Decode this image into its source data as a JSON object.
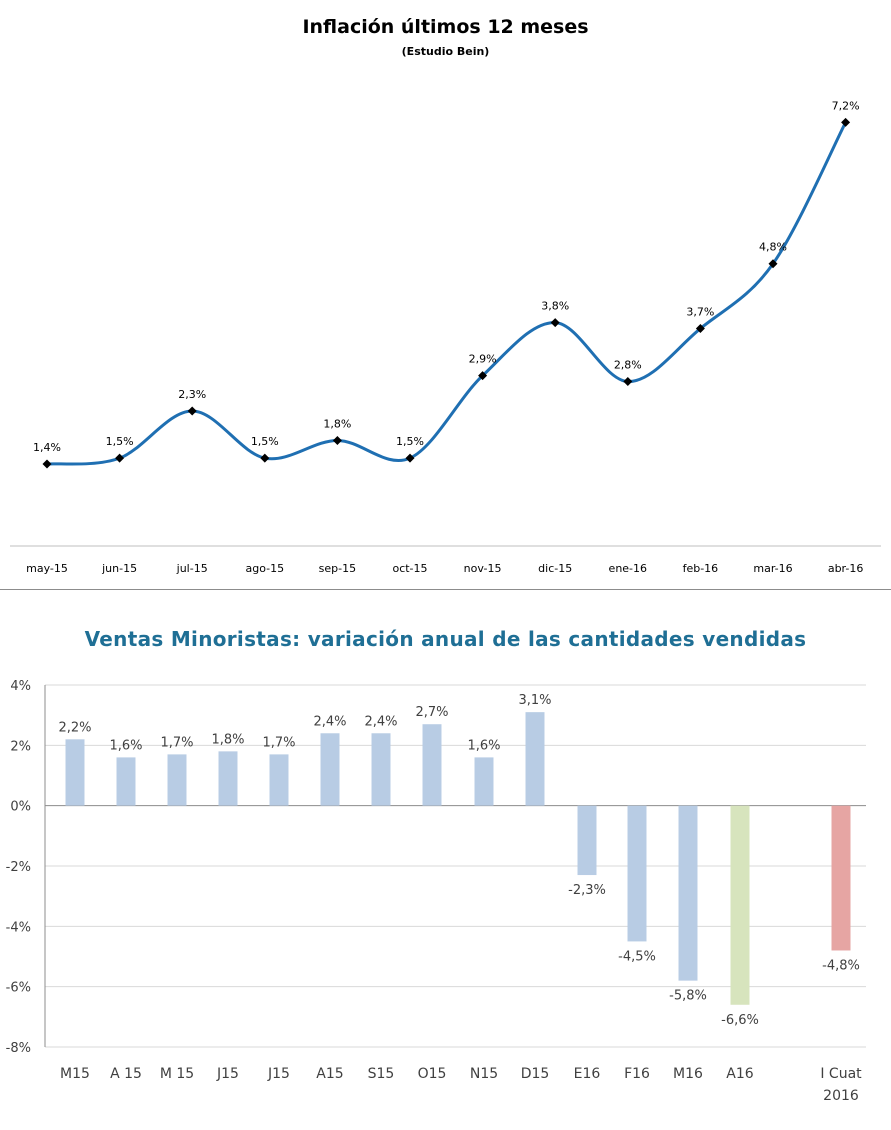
{
  "chart_data": [
    {
      "type": "line",
      "title": "Inflación últimos 12 meses",
      "subtitle": "(Estudio Bein)",
      "xlabel": "",
      "ylabel": "",
      "categories": [
        "may-15",
        "jun-15",
        "jul-15",
        "ago-15",
        "sep-15",
        "oct-15",
        "nov-15",
        "dic-15",
        "ene-16",
        "feb-16",
        "mar-16",
        "abr-16"
      ],
      "values": [
        1.4,
        1.5,
        2.3,
        1.5,
        1.8,
        1.5,
        2.9,
        3.8,
        2.8,
        3.7,
        4.8,
        7.2
      ],
      "data_labels": [
        "1,4%",
        "1,5%",
        "2,3%",
        "1,5%",
        "1,8%",
        "1,5%",
        "2,9%",
        "3,8%",
        "2,8%",
        "3,7%",
        "4,8%",
        "7,2%"
      ],
      "grid": false,
      "legend": "none",
      "colors": {
        "line": "#1f6fb2",
        "marker": "#000000"
      }
    },
    {
      "type": "bar",
      "title": "Ventas Minoristas: variación anual de las cantidades vendidas",
      "xlabel": "",
      "ylabel": "",
      "categories": [
        "M15",
        "A 15",
        "M 15",
        "J15",
        "J15",
        "A15",
        "S15",
        "O15",
        "N15",
        "D15",
        "E16",
        "F16",
        "M16",
        "A16",
        "I Cuat 2016"
      ],
      "category_lines": [
        [
          "M15"
        ],
        [
          "A 15"
        ],
        [
          "M 15"
        ],
        [
          "J15"
        ],
        [
          "J15"
        ],
        [
          "A15"
        ],
        [
          "S15"
        ],
        [
          "O15"
        ],
        [
          "N15"
        ],
        [
          "D15"
        ],
        [
          "E16"
        ],
        [
          "F16"
        ],
        [
          "M16"
        ],
        [
          "A16"
        ],
        [
          "I Cuat",
          "2016"
        ]
      ],
      "values": [
        2.2,
        1.6,
        1.7,
        1.8,
        1.7,
        2.4,
        2.4,
        2.7,
        1.6,
        3.1,
        -2.3,
        -4.5,
        -5.8,
        -6.6,
        -4.8
      ],
      "data_labels": [
        "2,2%",
        "1,6%",
        "1,7%",
        "1,8%",
        "1,7%",
        "2,4%",
        "2,4%",
        "2,7%",
        "1,6%",
        "3,1%",
        "-2,3%",
        "-4,5%",
        "-5,8%",
        "-6,6%",
        "-4,8%"
      ],
      "ylim": [
        -8,
        4
      ],
      "yticks": [
        4,
        2,
        0,
        -2,
        -4,
        -6,
        -8
      ],
      "ytick_labels": [
        "4%",
        "2%",
        "0%",
        "-2%",
        "-4%",
        "-6%",
        "-8%"
      ],
      "grid": true,
      "legend": "none",
      "bar_colors": [
        "#b8cce4",
        "#b8cce4",
        "#b8cce4",
        "#b8cce4",
        "#b8cce4",
        "#b8cce4",
        "#b8cce4",
        "#b8cce4",
        "#b8cce4",
        "#b8cce4",
        "#b8cce4",
        "#b8cce4",
        "#b8cce4",
        "#d7e4bd",
        "#e6a5a3"
      ]
    }
  ]
}
